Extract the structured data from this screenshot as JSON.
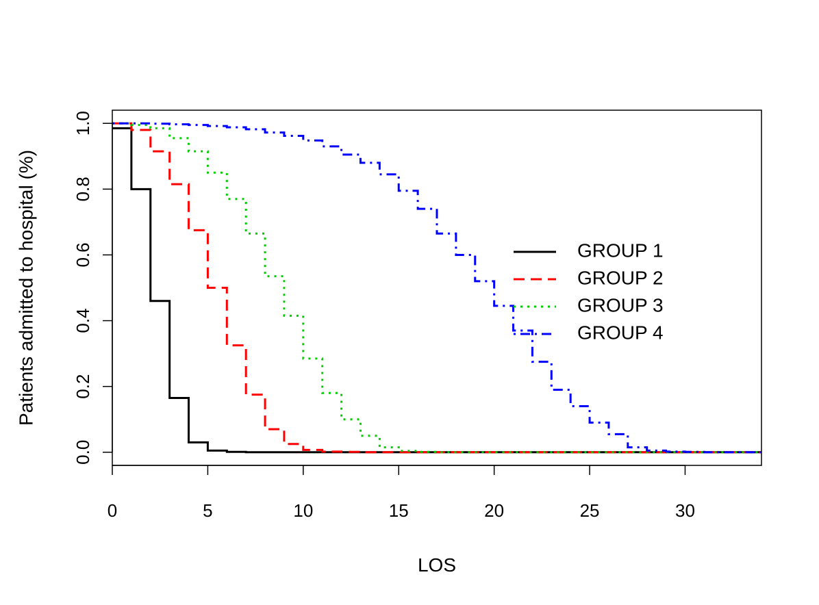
{
  "chart_data": {
    "type": "line",
    "xlabel": "LOS",
    "ylabel": "Patients admitted to hospital (%)",
    "xlim": [
      0,
      34
    ],
    "ylim": [
      -0.04,
      1.04
    ],
    "x_ticks": [
      0,
      5,
      10,
      15,
      20,
      25,
      30
    ],
    "x_tick_labels": [
      "0",
      "5",
      "10",
      "15",
      "20",
      "25",
      "30"
    ],
    "y_ticks": [
      0,
      0.2,
      0.4,
      0.6,
      0.8,
      1.0
    ],
    "y_tick_labels": [
      "0.0",
      "0.2",
      "0.4",
      "0.6",
      "0.8",
      "1.0"
    ],
    "grid": false,
    "legend_position": "right",
    "step": true,
    "x": [
      0,
      1,
      2,
      3,
      4,
      5,
      6,
      7,
      8,
      9,
      10,
      11,
      12,
      13,
      14,
      15,
      16,
      17,
      18,
      19,
      20,
      21,
      22,
      23,
      24,
      25,
      26,
      27,
      28,
      29,
      30,
      31,
      32,
      33,
      34
    ],
    "series": [
      {
        "name": "GROUP 1",
        "color": "#000000",
        "dash": "solid",
        "values": [
          0.985,
          0.8,
          0.46,
          0.165,
          0.03,
          0.005,
          0.001,
          0,
          0,
          0,
          0,
          0,
          0,
          0,
          0,
          0,
          0,
          0,
          0,
          0,
          0,
          0,
          0,
          0,
          0,
          0,
          0,
          0,
          0,
          0,
          0,
          0,
          0,
          0,
          0
        ]
      },
      {
        "name": "GROUP 2",
        "color": "#ff0000",
        "dash": "dashed",
        "values": [
          1.0,
          0.98,
          0.915,
          0.815,
          0.675,
          0.5,
          0.325,
          0.175,
          0.07,
          0.025,
          0.007,
          0.002,
          0.001,
          0,
          0,
          0,
          0,
          0,
          0,
          0,
          0,
          0,
          0,
          0,
          0,
          0,
          0,
          0,
          0,
          0,
          0,
          0,
          0,
          0,
          0
        ]
      },
      {
        "name": "GROUP 3",
        "color": "#00cc00",
        "dash": "dotted",
        "values": [
          1.0,
          0.995,
          0.985,
          0.955,
          0.915,
          0.85,
          0.77,
          0.665,
          0.535,
          0.415,
          0.285,
          0.18,
          0.1,
          0.05,
          0.015,
          0.004,
          0.001,
          0,
          0,
          0,
          0,
          0,
          0,
          0,
          0,
          0,
          0,
          0,
          0,
          0,
          0,
          0,
          0,
          0,
          0
        ]
      },
      {
        "name": "GROUP 4",
        "color": "#0000ff",
        "dash": "dotdash",
        "values": [
          1.0,
          1.0,
          0.999,
          0.997,
          0.995,
          0.992,
          0.988,
          0.982,
          0.972,
          0.962,
          0.948,
          0.93,
          0.905,
          0.88,
          0.845,
          0.795,
          0.74,
          0.665,
          0.6,
          0.52,
          0.445,
          0.37,
          0.275,
          0.19,
          0.14,
          0.09,
          0.055,
          0.015,
          0.005,
          0.002,
          0.001,
          0,
          0,
          0,
          0
        ]
      }
    ]
  }
}
